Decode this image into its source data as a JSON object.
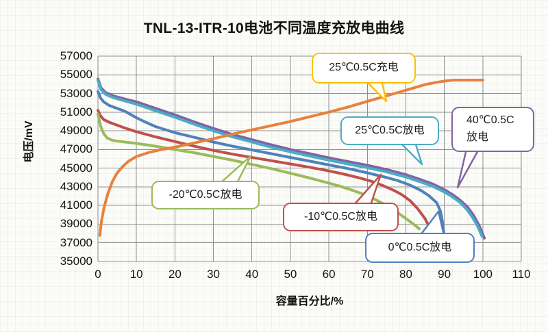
{
  "chart_data": {
    "type": "line",
    "title": "TNL-13-ITR-10电池不同温度充放电曲线",
    "xlabel": "容量百分比/%",
    "ylabel": "电压/mV",
    "xlim": [
      0,
      110
    ],
    "ylim": [
      35000,
      57000
    ],
    "x_ticks": [
      0,
      10,
      20,
      30,
      40,
      50,
      60,
      70,
      80,
      90,
      100,
      110
    ],
    "y_ticks": [
      35000,
      37000,
      39000,
      41000,
      43000,
      45000,
      47000,
      49000,
      51000,
      53000,
      55000,
      57000
    ],
    "grid": {
      "vertical_interval": 10,
      "horizontal_interval": 2000,
      "color": "#8f8f8f",
      "visible": true
    },
    "legend": "none (series labeled with callout bubbles)",
    "series": [
      {
        "key": "discharge-0c",
        "name": "0℃0.5C放电",
        "color": "#4F81BD",
        "points": [
          [
            0,
            53200
          ],
          [
            0.7,
            52500
          ],
          [
            1.5,
            52100
          ],
          [
            3,
            51700
          ],
          [
            5,
            51400
          ],
          [
            7,
            51100
          ],
          [
            10,
            50400
          ],
          [
            12,
            50000
          ],
          [
            15,
            49450
          ],
          [
            20,
            48800
          ],
          [
            25,
            48300
          ],
          [
            30,
            47800
          ],
          [
            35,
            47350
          ],
          [
            40,
            46950
          ],
          [
            45,
            46550
          ],
          [
            50,
            46150
          ],
          [
            55,
            45750
          ],
          [
            60,
            45350
          ],
          [
            65,
            44950
          ],
          [
            70,
            44500
          ],
          [
            75,
            44000
          ],
          [
            78,
            43650
          ],
          [
            81,
            43200
          ],
          [
            84,
            42600
          ],
          [
            86,
            42050
          ],
          [
            88,
            41300
          ],
          [
            89,
            40400
          ],
          [
            89.5,
            39300
          ],
          [
            89.8,
            38300
          ],
          [
            90,
            37700
          ]
        ]
      },
      {
        "key": "discharge-neg10c",
        "name": "-10℃0.5C放电",
        "color": "#C0504D",
        "points": [
          [
            0,
            51200
          ],
          [
            0.5,
            50700
          ],
          [
            1.5,
            50200
          ],
          [
            3,
            49900
          ],
          [
            5,
            49600
          ],
          [
            7,
            49300
          ],
          [
            10,
            48900
          ],
          [
            15,
            48350
          ],
          [
            20,
            47850
          ],
          [
            25,
            47350
          ],
          [
            30,
            46900
          ],
          [
            35,
            46500
          ],
          [
            40,
            46150
          ],
          [
            45,
            45800
          ],
          [
            50,
            45450
          ],
          [
            55,
            45100
          ],
          [
            60,
            44700
          ],
          [
            64,
            44350
          ],
          [
            68,
            43950
          ],
          [
            71,
            43600
          ],
          [
            74,
            43150
          ],
          [
            77,
            42600
          ],
          [
            79,
            42150
          ],
          [
            81,
            41550
          ],
          [
            83,
            40700
          ],
          [
            85,
            39600
          ],
          [
            86.2,
            38600
          ],
          [
            86.8,
            37850
          ]
        ]
      },
      {
        "key": "discharge-neg20c",
        "name": "-20℃0.5C放电",
        "color": "#9BBB59",
        "points": [
          [
            0,
            50800
          ],
          [
            0.7,
            49500
          ],
          [
            1.5,
            48700
          ],
          [
            2.5,
            48200
          ],
          [
            4,
            47950
          ],
          [
            6,
            47850
          ],
          [
            10,
            47650
          ],
          [
            15,
            47350
          ],
          [
            20,
            47000
          ],
          [
            25,
            46650
          ],
          [
            30,
            46250
          ],
          [
            35,
            45850
          ],
          [
            40,
            45400
          ],
          [
            45,
            44950
          ],
          [
            50,
            44450
          ],
          [
            55,
            43950
          ],
          [
            60,
            43400
          ],
          [
            63,
            43050
          ],
          [
            66,
            42650
          ],
          [
            69,
            42200
          ],
          [
            72,
            41650
          ],
          [
            75,
            41000
          ],
          [
            78,
            40200
          ],
          [
            80,
            39600
          ],
          [
            82,
            39000
          ],
          [
            83.5,
            38500
          ]
        ]
      },
      {
        "key": "discharge-40c",
        "name": "40℃0.5C放电",
        "color": "#8064A2",
        "points": [
          [
            0,
            54550
          ],
          [
            0.8,
            53600
          ],
          [
            2,
            53100
          ],
          [
            4,
            52750
          ],
          [
            7,
            52400
          ],
          [
            10,
            52100
          ],
          [
            15,
            51400
          ],
          [
            20,
            50700
          ],
          [
            25,
            49950
          ],
          [
            30,
            49250
          ],
          [
            35,
            48600
          ],
          [
            40,
            48050
          ],
          [
            45,
            47500
          ],
          [
            50,
            47000
          ],
          [
            55,
            46550
          ],
          [
            60,
            46100
          ],
          [
            65,
            45700
          ],
          [
            70,
            45300
          ],
          [
            75,
            44850
          ],
          [
            80,
            44300
          ],
          [
            84,
            43750
          ],
          [
            87,
            43300
          ],
          [
            90,
            42700
          ],
          [
            92,
            42200
          ],
          [
            94,
            41600
          ],
          [
            96,
            40850
          ],
          [
            97.5,
            40000
          ],
          [
            99,
            38900
          ],
          [
            100.4,
            37500
          ]
        ]
      },
      {
        "key": "discharge-25c",
        "name": "25℃0.5C放电",
        "color": "#4BACC6",
        "points": [
          [
            0,
            54400
          ],
          [
            0.8,
            53400
          ],
          [
            2,
            52900
          ],
          [
            4,
            52550
          ],
          [
            7,
            52200
          ],
          [
            10,
            51850
          ],
          [
            15,
            51150
          ],
          [
            20,
            50450
          ],
          [
            25,
            49700
          ],
          [
            30,
            49000
          ],
          [
            35,
            48350
          ],
          [
            40,
            47800
          ],
          [
            45,
            47250
          ],
          [
            50,
            46750
          ],
          [
            55,
            46300
          ],
          [
            60,
            45850
          ],
          [
            65,
            45450
          ],
          [
            70,
            45050
          ],
          [
            75,
            44600
          ],
          [
            80,
            44050
          ],
          [
            84,
            43500
          ],
          [
            87,
            43050
          ],
          [
            90,
            42450
          ],
          [
            92,
            41950
          ],
          [
            94,
            41350
          ],
          [
            95.8,
            40600
          ],
          [
            97.3,
            39750
          ],
          [
            98.8,
            38650
          ],
          [
            99.8,
            37700
          ]
        ]
      },
      {
        "key": "charge-25c",
        "name": "25℃0.5C充电",
        "color": "#E8813C",
        "points": [
          [
            0.5,
            37800
          ],
          [
            0.9,
            39300
          ],
          [
            1.6,
            40800
          ],
          [
            2.6,
            42300
          ],
          [
            3.8,
            43600
          ],
          [
            5,
            44500
          ],
          [
            6.5,
            45200
          ],
          [
            8,
            45750
          ],
          [
            10,
            46250
          ],
          [
            13,
            46650
          ],
          [
            16,
            46950
          ],
          [
            20,
            47250
          ],
          [
            25,
            47700
          ],
          [
            30,
            48150
          ],
          [
            35,
            48650
          ],
          [
            40,
            49100
          ],
          [
            45,
            49550
          ],
          [
            50,
            50000
          ],
          [
            55,
            50500
          ],
          [
            60,
            51000
          ],
          [
            65,
            51550
          ],
          [
            70,
            52150
          ],
          [
            75,
            52750
          ],
          [
            80,
            53350
          ],
          [
            85,
            53950
          ],
          [
            88,
            54200
          ],
          [
            90.5,
            54350
          ],
          [
            92.5,
            54430
          ],
          [
            100,
            54430
          ]
        ]
      }
    ],
    "callouts": [
      {
        "label": "25℃0.5C充电",
        "border_color": "#FFC000"
      },
      {
        "label": "25℃0.5C放电",
        "border_color": "#4BACC6"
      },
      {
        "label": "40℃0.5C\n放电",
        "border_color": "#8064A2"
      },
      {
        "label": "-20℃0.5C放电",
        "border_color": "#9BBB59"
      },
      {
        "label": "-10℃0.5C放电",
        "border_color": "#C0504D"
      },
      {
        "label": "0℃0.5C放电",
        "border_color": "#4F81BD"
      }
    ]
  }
}
